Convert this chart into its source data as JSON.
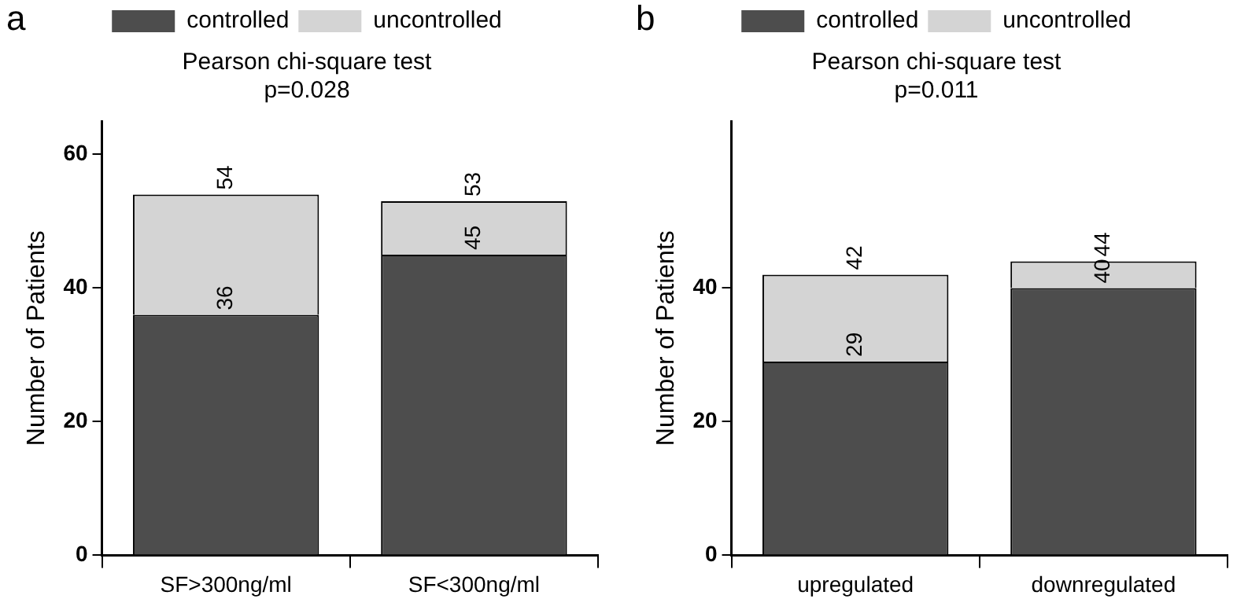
{
  "chart_data": [
    {
      "type": "bar",
      "title": "a",
      "categories": [
        "SF>300ng/ml",
        "SF<300ng/ml"
      ],
      "ylabel": "Number of Patients",
      "stacked": true,
      "series": [
        {
          "name": "controlled",
          "color": "#4d4d4d",
          "values": [
            36,
            45
          ],
          "value_labels": [
            "36",
            "45"
          ]
        },
        {
          "name": "uncontrolled",
          "color": "#d4d4d4",
          "values": [
            18,
            8
          ]
        }
      ],
      "totals": [
        "54",
        "53"
      ],
      "ylim": [
        0,
        65
      ],
      "yticks": [
        0,
        20,
        40,
        60
      ],
      "grid": false,
      "legend": "top",
      "annotations": [
        "Pearson chi-square test",
        "p=0.028"
      ]
    },
    {
      "type": "bar",
      "title": "b",
      "categories": [
        "upregulated",
        "downregulated"
      ],
      "ylabel": "Number of Patients",
      "stacked": true,
      "series": [
        {
          "name": "controlled",
          "color": "#4d4d4d",
          "values": [
            29,
            40
          ],
          "value_labels": [
            "29",
            "40"
          ]
        },
        {
          "name": "uncontrolled",
          "color": "#d4d4d4",
          "values": [
            13,
            4
          ]
        }
      ],
      "totals": [
        "42",
        "44"
      ],
      "ylim": [
        0,
        65
      ],
      "yticks": [
        0,
        20,
        40
      ],
      "grid": false,
      "legend": "top",
      "annotations": [
        "Pearson chi-square test",
        "p=0.011"
      ]
    }
  ]
}
